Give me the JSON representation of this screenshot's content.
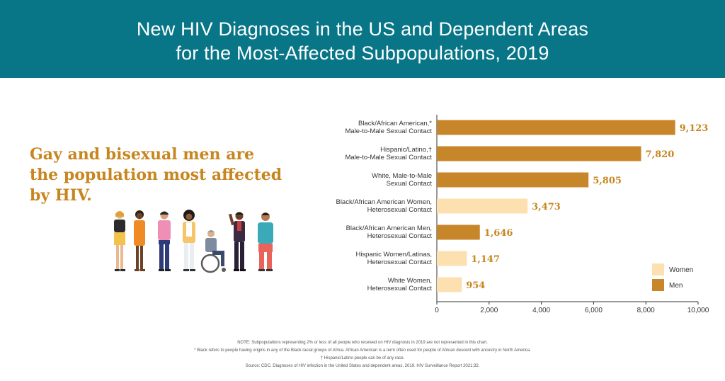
{
  "header": {
    "title_line1": "New HIV Diagnoses in the US and Dependent Areas",
    "title_line2": "for the Most-Affected Subpopulations, 2019"
  },
  "headline": {
    "line1": "Gay and bisexual men are",
    "line2": "the population most affected",
    "line3": "by HIV."
  },
  "illustration": {
    "icon": "diverse-people-illustration",
    "figures": 7
  },
  "chart_data": {
    "type": "bar",
    "orientation": "horizontal",
    "categories": [
      [
        "Black/African American,*",
        "Male-to-Male Sexual Contact"
      ],
      [
        "Hispanic/Latino,†",
        "Male-to-Male Sexual Contact"
      ],
      [
        "White, Male-to-Male",
        "Sexual Contact"
      ],
      [
        "Black/African American Women,",
        "Heterosexual Contact"
      ],
      [
        "Black/African American Men,",
        "Heterosexual Contact"
      ],
      [
        "Hispanic Women/Latinas,",
        "Heterosexual Contact"
      ],
      [
        "White Women,",
        "Heterosexual Contact"
      ]
    ],
    "values": [
      9123,
      7820,
      5805,
      3473,
      1646,
      1147,
      954
    ],
    "value_labels": [
      "9,123",
      "7,820",
      "5,805",
      "3,473",
      "1,646",
      "1,147",
      "954"
    ],
    "groups": [
      "Men",
      "Men",
      "Men",
      "Women",
      "Men",
      "Women",
      "Women"
    ],
    "xlim": [
      0,
      10000
    ],
    "xticks": [
      0,
      2000,
      4000,
      6000,
      8000,
      10000
    ],
    "xtick_labels": [
      "0",
      "2,000",
      "4,000",
      "6,000",
      "8,000",
      "10,000"
    ],
    "legend": [
      {
        "name": "Women",
        "color": "#fde0b0"
      },
      {
        "name": "Men",
        "color": "#c8862a"
      }
    ],
    "legend_position": "bottom-right",
    "colors": {
      "Men": "#c8862a",
      "Women": "#fde0b0",
      "label": "#c7861f",
      "axis": "#333333"
    },
    "grid": false
  },
  "notes": {
    "note": "NOTE: Subpopulations representing 2% or less of all people who received on HIV diagnosis in 2019 are not represented in this chart.",
    "footnote1": "* Black refers to people having origins in any of the Black racial groups of Africa. African American is a term often used for people of African descent with ancestry in North America.",
    "footnote2": "† Hispanic/Latino people can be of any race.",
    "source": "Source: CDC. Diagnoses of HIV infection in the United States and dependent areas, 2019. HIV Surveillance Report 2021;32."
  }
}
